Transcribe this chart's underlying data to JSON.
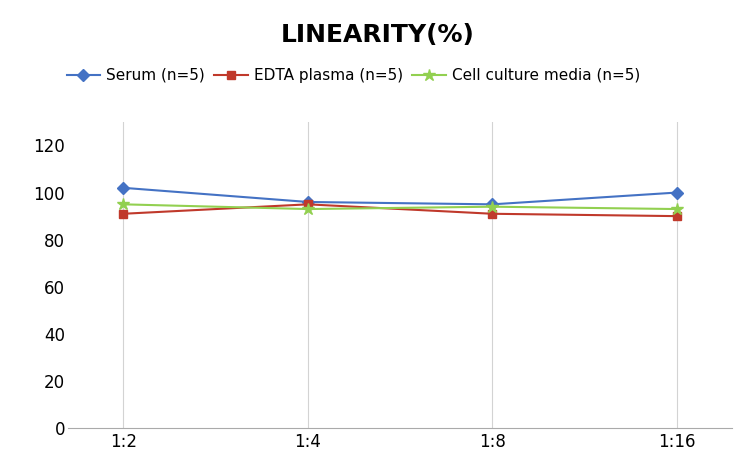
{
  "title": "LINEARITY(%)",
  "x_labels": [
    "1:2",
    "1:4",
    "1:8",
    "1:16"
  ],
  "x_positions": [
    0,
    1,
    2,
    3
  ],
  "series": [
    {
      "label": "Serum (n=5)",
      "values": [
        102,
        96,
        95,
        100
      ],
      "color": "#4472C4",
      "marker": "D",
      "markersize": 6
    },
    {
      "label": "EDTA plasma (n=5)",
      "values": [
        91,
        95,
        91,
        90
      ],
      "color": "#C0392B",
      "marker": "s",
      "markersize": 6
    },
    {
      "label": "Cell culture media (n=5)",
      "values": [
        95,
        93,
        94,
        93
      ],
      "color": "#92D050",
      "marker": "*",
      "markersize": 9
    }
  ],
  "ylim": [
    0,
    130
  ],
  "yticks": [
    0,
    20,
    40,
    60,
    80,
    100,
    120
  ],
  "title_fontsize": 18,
  "legend_fontsize": 11,
  "tick_fontsize": 12,
  "background_color": "#ffffff",
  "grid_color": "#d3d3d3"
}
